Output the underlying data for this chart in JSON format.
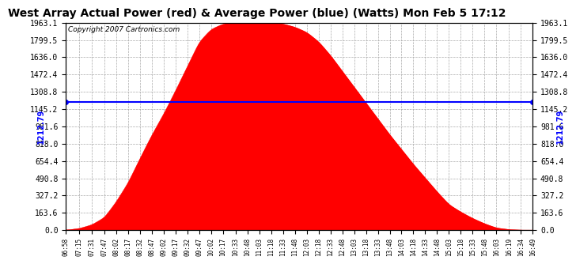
{
  "title": "West Array Actual Power (red) & Average Power (blue) (Watts) Mon Feb 5 17:12",
  "copyright": "Copyright 2007 Cartronics.com",
  "average_power": 1212.79,
  "y_max": 1963.1,
  "y_ticks": [
    0.0,
    163.6,
    327.2,
    490.8,
    654.4,
    818.0,
    981.6,
    1145.2,
    1308.8,
    1472.4,
    1636.0,
    1799.5,
    1963.1
  ],
  "x_labels": [
    "06:58",
    "07:15",
    "07:31",
    "07:47",
    "08:02",
    "08:17",
    "08:32",
    "08:47",
    "09:02",
    "09:17",
    "09:32",
    "09:47",
    "10:02",
    "10:17",
    "10:33",
    "10:48",
    "11:03",
    "11:18",
    "11:33",
    "11:48",
    "12:03",
    "12:18",
    "12:33",
    "12:48",
    "13:03",
    "13:18",
    "13:33",
    "13:48",
    "14:03",
    "14:18",
    "14:33",
    "14:48",
    "15:03",
    "15:18",
    "15:33",
    "15:48",
    "16:03",
    "16:19",
    "16:34",
    "16:49"
  ],
  "fill_color": "#FF0000",
  "line_color": "#0000FF",
  "background_color": "#FFFFFF",
  "grid_color": "#AAAAAA",
  "title_fontsize": 10,
  "copyright_fontsize": 7,
  "avg_label": "1212.79",
  "peak_index": 16,
  "curve_points": [
    0,
    15,
    50,
    120,
    270,
    450,
    680,
    900,
    1100,
    1320,
    1550,
    1780,
    1900,
    1950,
    1963,
    1963,
    1963,
    1963,
    1950,
    1920,
    1870,
    1780,
    1650,
    1500,
    1350,
    1200,
    1050,
    900,
    760,
    620,
    490,
    360,
    240,
    170,
    110,
    60,
    20,
    5,
    0,
    0
  ]
}
